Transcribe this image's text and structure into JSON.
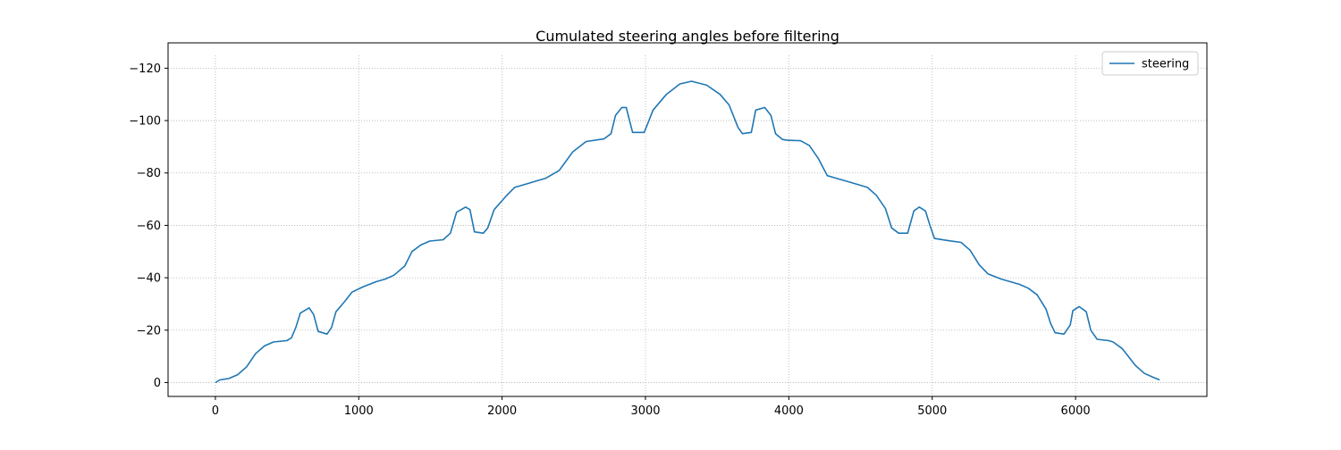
{
  "chart_data": {
    "type": "line",
    "title": "Cumulated steering angles before filtering",
    "x": [
      0,
      31,
      93,
      156,
      218,
      280,
      343,
      405,
      498,
      530,
      561,
      592,
      654,
      685,
      717,
      779,
      810,
      841,
      903,
      953,
      1028,
      1121,
      1184,
      1246,
      1321,
      1371,
      1433,
      1495,
      1589,
      1639,
      1682,
      1745,
      1776,
      1807,
      1869,
      1900,
      1944,
      2025,
      2087,
      2181,
      2243,
      2305,
      2399,
      2492,
      2586,
      2710,
      2760,
      2791,
      2835,
      2866,
      2910,
      2991,
      3053,
      3146,
      3240,
      3321,
      3427,
      3520,
      3583,
      3645,
      3676,
      3738,
      3769,
      3832,
      3875,
      3907,
      3956,
      3988,
      4081,
      4143,
      4206,
      4268,
      4330,
      4393,
      4486,
      4548,
      4610,
      4673,
      4717,
      4766,
      4829,
      4872,
      4910,
      4953,
      4984,
      5016,
      5109,
      5202,
      5265,
      5327,
      5389,
      5483,
      5545,
      5607,
      5670,
      5732,
      5794,
      5826,
      5857,
      5919,
      5963,
      5981,
      6025,
      6075,
      6106,
      6150,
      6231,
      6262,
      6324,
      6368,
      6418,
      6480,
      6542,
      6586
    ],
    "series": [
      {
        "name": "steering",
        "color": "#1f77b4",
        "values": [
          0,
          -1,
          -1.5,
          -3,
          -6,
          -11,
          -14,
          -15.5,
          -16,
          -17,
          -21,
          -26.5,
          -28.5,
          -26,
          -19.5,
          -18.5,
          -21,
          -27,
          -31,
          -34.5,
          -36.5,
          -38.5,
          -39.5,
          -41,
          -44.5,
          -50,
          -52.5,
          -54,
          -54.5,
          -57,
          -65,
          -67,
          -66,
          -57.5,
          -57,
          -59,
          -66,
          -71,
          -74.5,
          -76,
          -77,
          -78,
          -81,
          -88,
          -92,
          -93,
          -95,
          -102,
          -105,
          -105,
          -95.5,
          -95.5,
          -104,
          -110,
          -114,
          -115,
          -113.5,
          -110,
          -106,
          -97.5,
          -95,
          -95.5,
          -104,
          -105,
          -102,
          -95,
          -92.8,
          -92.5,
          -92.3,
          -90.5,
          -85.5,
          -79,
          -78,
          -77,
          -75.5,
          -74.5,
          -71.5,
          -66.5,
          -59,
          -57,
          -57,
          -65.5,
          -67,
          -65.5,
          -60,
          -55,
          -54.2,
          -53.5,
          -50.5,
          -45,
          -41.5,
          -39.5,
          -38.5,
          -37.5,
          -36,
          -33.5,
          -28,
          -22.5,
          -19,
          -18.5,
          -22,
          -27.5,
          -29,
          -27,
          -20,
          -16.5,
          -16,
          -15.5,
          -13,
          -10,
          -6.5,
          -3.5,
          -2,
          -1
        ]
      }
    ],
    "xlim": [
      -330,
      6916
    ],
    "xticks": [
      0,
      1000,
      2000,
      3000,
      4000,
      5000,
      6000
    ],
    "ylim": [
      5.3,
      -124.9
    ],
    "yticks": [
      {
        "value": -120,
        "label": "−120"
      },
      {
        "value": -100,
        "label": "−100"
      },
      {
        "value": -80,
        "label": "−80"
      },
      {
        "value": -60,
        "label": "−60"
      },
      {
        "value": -40,
        "label": "−40"
      },
      {
        "value": -20,
        "label": "−20"
      },
      0
    ],
    "grid": true,
    "legend": "upper right"
  }
}
